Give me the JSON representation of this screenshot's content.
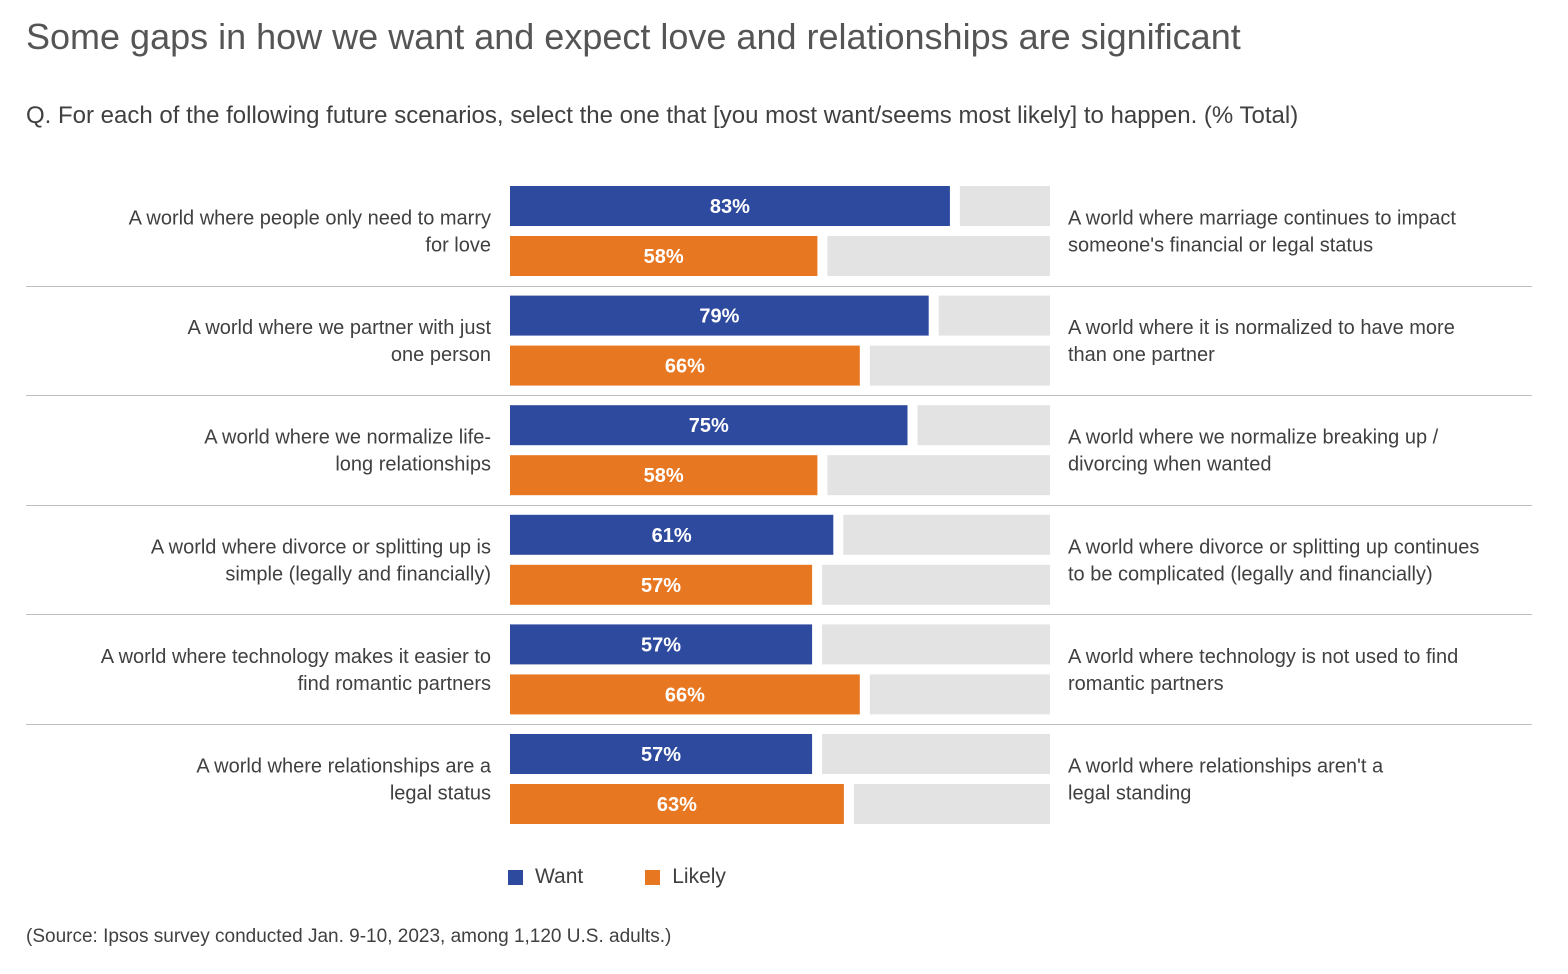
{
  "title": "Some gaps in how we want and expect love and relationships are significant",
  "subtitle": "Q. For each of the following future scenarios, select the one that [you most want/seems most likely] to happen. (% Total)",
  "source": "(Source: Ipsos survey conducted Jan. 9-10, 2023, among 1,120 U.S. adults.)",
  "colors": {
    "want": "#2E4A9E",
    "likely": "#E87722",
    "remainder": "#E3E3E3",
    "divider": "#BFBFBF"
  },
  "legend": {
    "want_label": "Want",
    "likely_label": "Likely"
  },
  "chart_data": {
    "type": "bar",
    "orientation": "horizontal",
    "stacked_to": 100,
    "value_suffix": "%",
    "xlim": [
      0,
      100
    ],
    "categories": [
      {
        "left": [
          "A world where people only need to marry",
          "for love"
        ],
        "right": [
          "A world where marriage continues to impact",
          "someone's financial or legal status"
        ]
      },
      {
        "left": [
          "A world where we partner with just",
          "one person"
        ],
        "right": [
          "A world where it is normalized to have more",
          "than one partner"
        ]
      },
      {
        "left": [
          "A world where we normalize life-",
          "long relationships"
        ],
        "right": [
          "A world where we normalize breaking up /",
          "divorcing when wanted"
        ]
      },
      {
        "left": [
          "A world where divorce or splitting up is",
          "simple (legally and financially)"
        ],
        "right": [
          "A world where divorce or splitting up continues",
          "to be complicated (legally and financially)"
        ]
      },
      {
        "left": [
          "A world where technology makes it easier to",
          "find romantic partners"
        ],
        "right": [
          "A world where technology is not used to find",
          "romantic partners"
        ]
      },
      {
        "left": [
          "A world where relationships are a",
          "legal status"
        ],
        "right": [
          "A world where relationships aren't a",
          "legal standing"
        ]
      }
    ],
    "series": [
      {
        "name": "Want",
        "values": [
          83,
          79,
          75,
          61,
          57,
          57
        ]
      },
      {
        "name": "Likely",
        "values": [
          58,
          66,
          58,
          57,
          66,
          63
        ]
      }
    ]
  }
}
